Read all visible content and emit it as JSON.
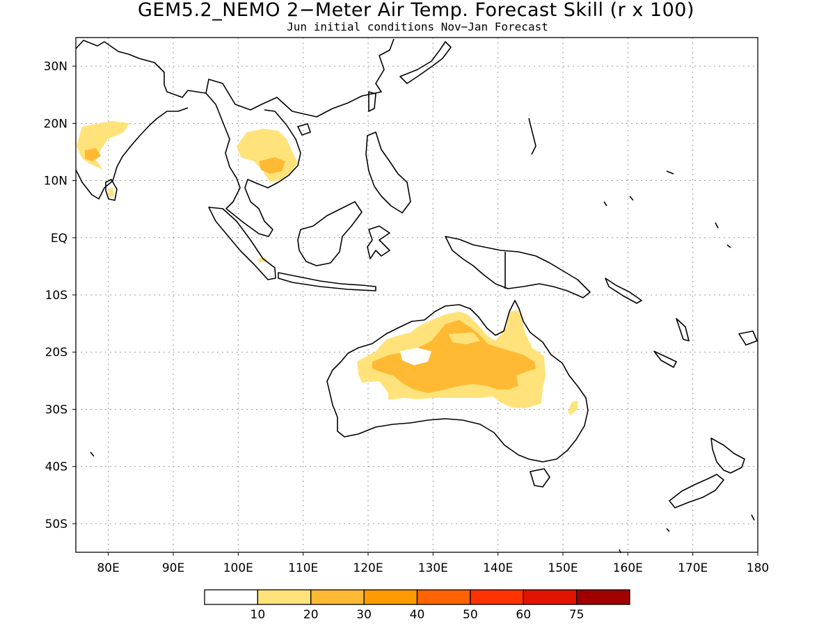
{
  "title": "GEM5.2_NEMO 2−Meter Air Temp. Forecast Skill (r x 100)",
  "subtitle": "Jun initial conditions  Nov−Jan Forecast",
  "map": {
    "lon_range": [
      75,
      180
    ],
    "lat_range": [
      -55,
      35
    ],
    "lon_ticks": [
      {
        "value": 80,
        "label": "80E"
      },
      {
        "value": 90,
        "label": "90E"
      },
      {
        "value": 100,
        "label": "100E"
      },
      {
        "value": 110,
        "label": "110E"
      },
      {
        "value": 120,
        "label": "120E"
      },
      {
        "value": 130,
        "label": "130E"
      },
      {
        "value": 140,
        "label": "140E"
      },
      {
        "value": 150,
        "label": "150E"
      },
      {
        "value": 160,
        "label": "160E"
      },
      {
        "value": 170,
        "label": "170E"
      },
      {
        "value": 180,
        "label": "180"
      }
    ],
    "lat_ticks": [
      {
        "value": 30,
        "label": "30N"
      },
      {
        "value": 20,
        "label": "20N"
      },
      {
        "value": 10,
        "label": "10N"
      },
      {
        "value": 0,
        "label": "EQ"
      },
      {
        "value": -10,
        "label": "10S"
      },
      {
        "value": -20,
        "label": "20S"
      },
      {
        "value": -30,
        "label": "30S"
      },
      {
        "value": -40,
        "label": "40S"
      },
      {
        "value": -50,
        "label": "50S"
      }
    ],
    "grid": true,
    "skill_regions": [
      {
        "region": "India west coast",
        "level": "10-20",
        "color": "#ffe37a"
      },
      {
        "region": "India Konkan",
        "level": "20-30",
        "color": "#ffb933"
      },
      {
        "region": "Indochina",
        "level": "10-20",
        "color": "#ffe37a"
      },
      {
        "region": "Cambodia",
        "level": "20-30",
        "color": "#ffb933"
      },
      {
        "region": "Northern and central Australia",
        "level": "10-20",
        "color": "#ffe37a"
      },
      {
        "region": "Central Australia core",
        "level": "20-30",
        "color": "#ffb933"
      }
    ]
  },
  "colorbar": {
    "bins": [
      {
        "color": "#ffffff"
      },
      {
        "color": "#ffe37a"
      },
      {
        "color": "#ffb933"
      },
      {
        "color": "#ff9a00"
      },
      {
        "color": "#ff6400"
      },
      {
        "color": "#ff3300"
      },
      {
        "color": "#e01400"
      },
      {
        "color": "#a00000"
      }
    ],
    "labels": [
      "10",
      "20",
      "30",
      "40",
      "50",
      "60",
      "75"
    ]
  }
}
